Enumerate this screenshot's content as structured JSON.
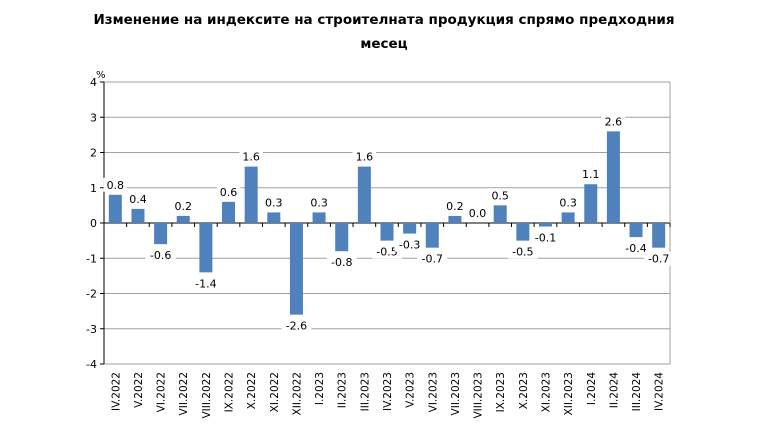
{
  "chart_data": {
    "type": "bar",
    "title": "Изменение на индексите на строителната продукция спрямо предходния месец",
    "title_lines": [
      "Изменение на индексите на строителната продукция спрямо предходния",
      "месец"
    ],
    "ylabel": "%",
    "xlabel": "",
    "ylim": [
      -4,
      4
    ],
    "yticks": [
      4,
      3,
      2,
      1,
      0,
      -1,
      -2,
      -3,
      -4
    ],
    "grid": true,
    "bar_color": "#4F81BD",
    "categories": [
      "IV.2022",
      "V.2022",
      "VI.2022",
      "VII.2022",
      "VIII.2022",
      "IX.2022",
      "X.2022",
      "XI.2022",
      "XII.2022",
      "I.2023",
      "II.2023",
      "III.2023",
      "IV.2023",
      "V.2023",
      "VI.2023",
      "VII.2023",
      "VIII.2023",
      "IX.2023",
      "X.2023",
      "XI.2023",
      "XII.2023",
      "I.2024",
      "II.2024",
      "III.2024",
      "IV.2024"
    ],
    "values": [
      0.8,
      0.4,
      -0.6,
      0.2,
      -1.4,
      0.6,
      1.6,
      0.3,
      -2.6,
      0.3,
      -0.8,
      1.6,
      -0.5,
      -0.3,
      -0.7,
      0.2,
      0.0,
      0.5,
      -0.5,
      -0.1,
      0.3,
      1.1,
      2.6,
      -0.4,
      -0.7
    ]
  }
}
